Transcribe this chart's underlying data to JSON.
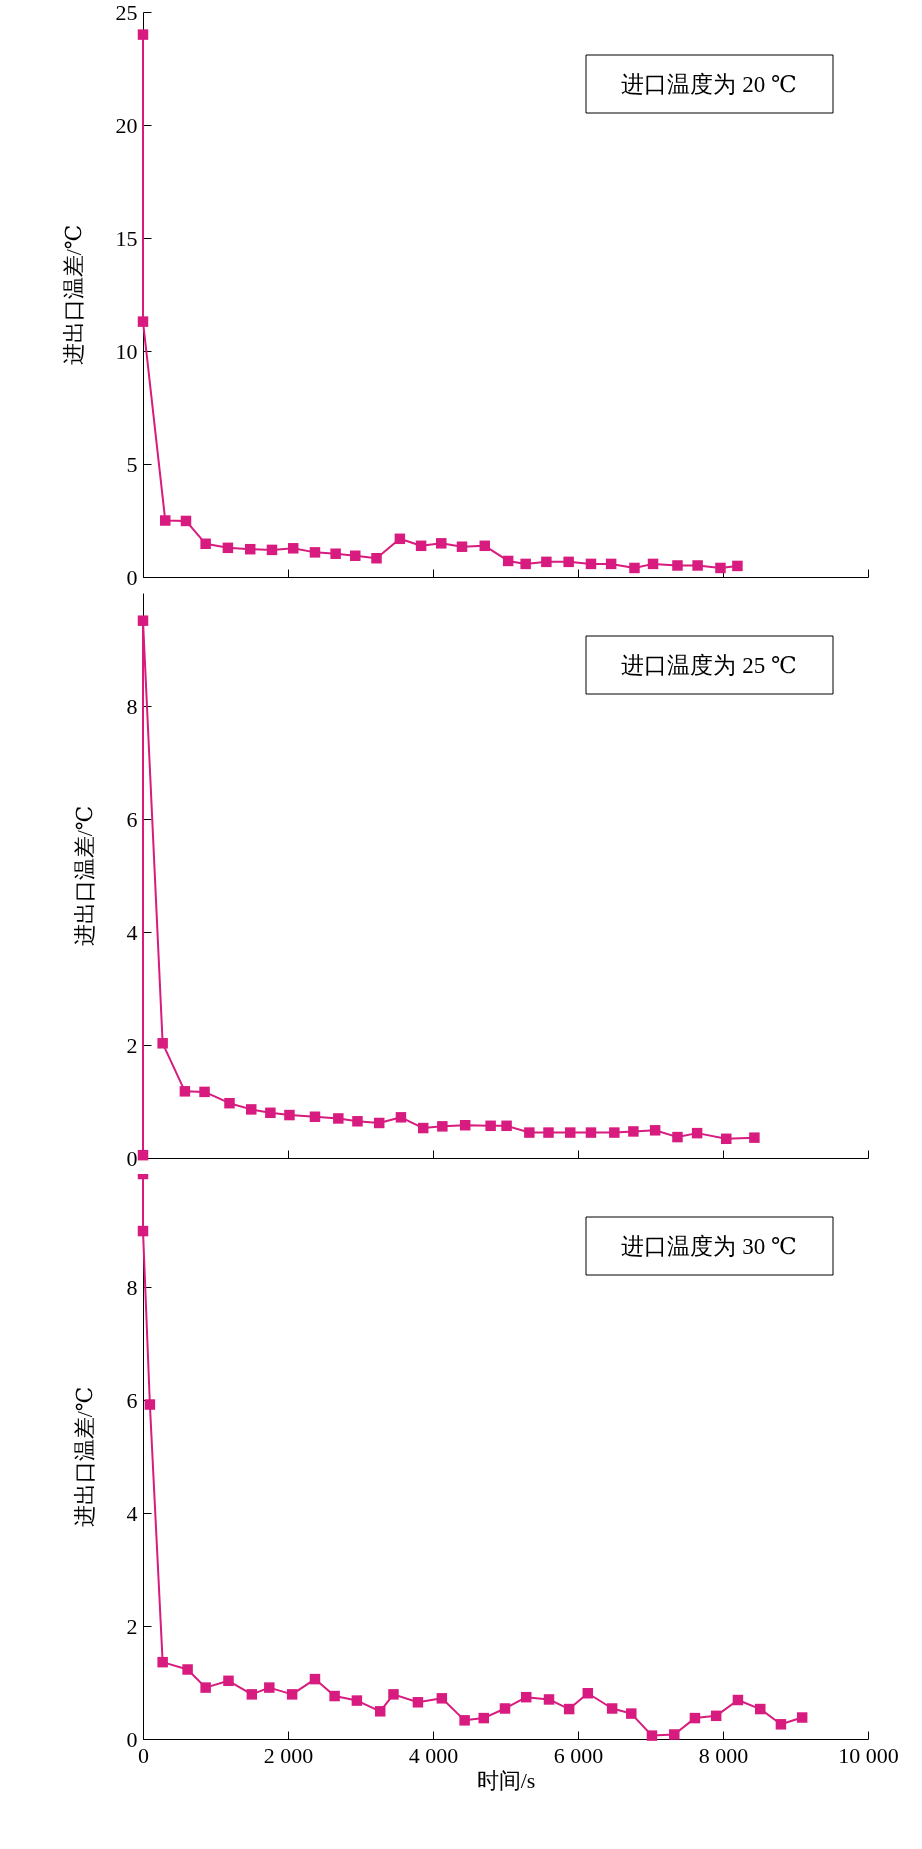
{
  "chart_data": [
    {
      "type": "line",
      "ylabel": "进出口温差/℃",
      "xlim": [
        0,
        10000
      ],
      "xticks": [
        0,
        2000,
        4000,
        6000,
        8000,
        10000
      ],
      "ylim": [
        0,
        25
      ],
      "yticks": [
        0,
        5,
        10,
        15,
        20,
        25
      ],
      "tick_labels": "y",
      "marker": "square",
      "annotations": [
        "进口温度为 20 ℃"
      ],
      "x": [
        0,
        0,
        307,
        593,
        864,
        1171,
        1479,
        1779,
        2072,
        2372,
        2657,
        2928,
        3221,
        3543,
        3836,
        4114,
        4400,
        4714,
        5037,
        5278,
        5564,
        5871,
        6179,
        6457,
        6779,
        7035,
        7372,
        7650,
        7965,
        8199
      ],
      "series": [
        {
          "color": "#d81b7e",
          "values": [
            24,
            11.3,
            2.5,
            2.48,
            1.47,
            1.29,
            1.23,
            1.2,
            1.27,
            1.09,
            1.03,
            0.94,
            0.83,
            1.69,
            1.38,
            1.49,
            1.34,
            1.38,
            0.71,
            0.58,
            0.67,
            0.67,
            0.58,
            0.58,
            0.4,
            0.58,
            0.51,
            0.51,
            0.4,
            0.49
          ]
        }
      ]
    },
    {
      "type": "line",
      "ylabel": "进出口温差/℃",
      "xlim": [
        0,
        10000
      ],
      "xticks": [
        0,
        2000,
        4000,
        6000,
        8000,
        10000
      ],
      "ylim": [
        0,
        10
      ],
      "yticks": [
        0,
        2,
        4,
        6,
        8
      ],
      "tick_labels": "y",
      "marker": "square",
      "annotations": [
        "进口温度为 25 ℃"
      ],
      "x": [
        0,
        0,
        271,
        578,
        849,
        1193,
        1493,
        1757,
        2020,
        2372,
        2694,
        2958,
        3258,
        3558,
        3865,
        4129,
        4444,
        4795,
        5015,
        5329,
        5593,
        5893,
        6179,
        6501,
        6764,
        7064,
        7372,
        7643,
        8045,
        8433
      ],
      "series": [
        {
          "color": "#d81b7e",
          "values": [
            0.05,
            9.51,
            2.03,
            1.18,
            1.17,
            0.97,
            0.86,
            0.8,
            0.76,
            0.73,
            0.7,
            0.65,
            0.62,
            0.72,
            0.53,
            0.56,
            0.58,
            0.57,
            0.57,
            0.45,
            0.45,
            0.45,
            0.45,
            0.45,
            0.47,
            0.49,
            0.37,
            0.44,
            0.34,
            0.36
          ]
        }
      ]
    },
    {
      "type": "line",
      "xlabel": "时间/s",
      "ylabel": "进出口温差/℃",
      "xlim": [
        0,
        10000
      ],
      "xticks": [
        0,
        {
          "value": 2000,
          "label": "2 000"
        },
        {
          "value": 4000,
          "label": "4 000"
        },
        {
          "value": 6000,
          "label": "6 000"
        },
        {
          "value": 8000,
          "label": "8 000"
        },
        {
          "value": 10000,
          "label": "10 000"
        }
      ],
      "ylim": [
        0,
        10
      ],
      "yticks": [
        0,
        2,
        4,
        6,
        8
      ],
      "marker": "square",
      "annotations": [
        "进口温度为 30 ℃"
      ],
      "x": [
        0,
        0,
        95,
        271,
        615,
        864,
        1179,
        1501,
        1742,
        2057,
        2372,
        2643,
        2950,
        3272,
        3455,
        3792,
        4122,
        4436,
        4700,
        4993,
        5286,
        5600,
        5878,
        6135,
        6471,
        6735,
        7020,
        7328,
        7613,
        7906,
        8206,
        8514,
        8799,
        9092
      ],
      "series": [
        {
          "color": "#d81b7e",
          "values": [
            10,
            8.99,
            5.92,
            1.36,
            1.23,
            0.91,
            1.03,
            0.79,
            0.91,
            0.79,
            1.06,
            0.76,
            0.68,
            0.49,
            0.79,
            0.65,
            0.72,
            0.33,
            0.37,
            0.54,
            0.74,
            0.7,
            0.53,
            0.81,
            0.54,
            0.45,
            0.06,
            0.08,
            0.37,
            0.41,
            0.69,
            0.53,
            0.26,
            0.38
          ]
        }
      ]
    }
  ]
}
